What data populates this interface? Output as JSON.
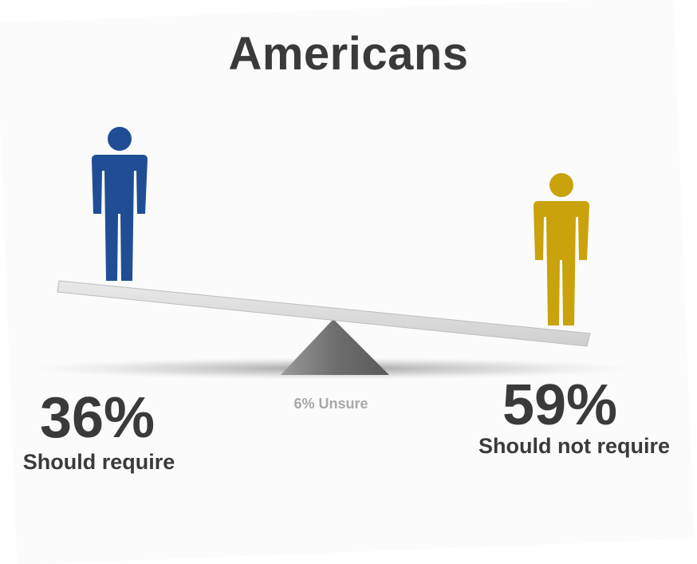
{
  "title": "Americans",
  "left": {
    "percent": "36%",
    "label": "Should require",
    "color": "#1f4e96"
  },
  "right": {
    "percent": "59%",
    "label": "Should not require",
    "color": "#c9a20c"
  },
  "middle": {
    "label": "6% Unsure"
  },
  "icons": [
    "person-icon",
    "person-icon",
    "seesaw-plank",
    "seesaw-fulcrum"
  ]
}
